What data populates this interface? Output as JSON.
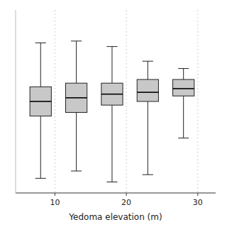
{
  "chart_data": {
    "type": "box",
    "xlabel": "Yedoma elevation (m)",
    "x": [
      8,
      13,
      18,
      23,
      28
    ],
    "boxes": [
      {
        "whislo": 8,
        "q1": 42,
        "med": 50,
        "q3": 58,
        "whishi": 82
      },
      {
        "whislo": 12,
        "q1": 44,
        "med": 52,
        "q3": 60,
        "whishi": 83
      },
      {
        "whislo": 6,
        "q1": 48,
        "med": 54,
        "q3": 60,
        "whishi": 80
      },
      {
        "whislo": 10,
        "q1": 50,
        "med": 55,
        "q3": 62,
        "whishi": 72
      },
      {
        "whislo": 30,
        "q1": 53,
        "med": 57,
        "q3": 62,
        "whishi": 68
      }
    ],
    "xlim": [
      4.5,
      32.5
    ],
    "xticks": [
      10,
      20,
      30
    ],
    "ylim": [
      0,
      100
    ],
    "grid": true,
    "tick_labels": "x",
    "color": "#c8c8c8"
  }
}
